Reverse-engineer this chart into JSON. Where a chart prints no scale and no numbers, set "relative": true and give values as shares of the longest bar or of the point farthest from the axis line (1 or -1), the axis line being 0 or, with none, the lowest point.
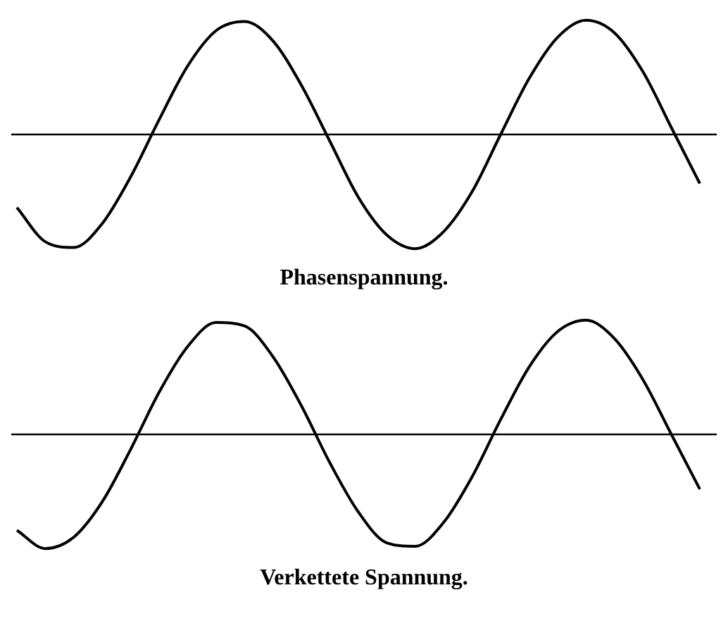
{
  "chart_data": [
    {
      "type": "line",
      "title": "Phasenspannung.",
      "relative": true,
      "categories": [
        null,
        null,
        null,
        null,
        null,
        null,
        null,
        null,
        null,
        null,
        null,
        null,
        null,
        null,
        null,
        null,
        null,
        null,
        null,
        null,
        null,
        null,
        null,
        null,
        null
      ],
      "series": [
        {
          "color": "#000000",
          "values": [
            -0.64,
            -0.94,
            -0.99,
            -0.78,
            -0.37,
            0.13,
            0.6,
            0.91,
            0.99,
            0.82,
            0.43,
            -0.06,
            -0.55,
            -0.88,
            -1,
            -0.85,
            -0.5,
            0,
            0.49,
            0.85,
            1,
            0.89,
            0.55,
            0.06,
            -0.43
          ]
        }
      ]
    },
    {
      "type": "line",
      "title": "Verkettete Spannung.",
      "relative": true,
      "categories": [
        null,
        null,
        null,
        null,
        null,
        null,
        null,
        null,
        null,
        null,
        null,
        null,
        null,
        null,
        null,
        null,
        null,
        null,
        null,
        null,
        null,
        null,
        null,
        null,
        null
      ],
      "series": [
        {
          "color": "#000000",
          "values": [
            -0.84,
            -1,
            -0.9,
            -0.59,
            -0.13,
            0.37,
            0.77,
            0.98,
            0.95,
            0.68,
            0.25,
            -0.25,
            -0.68,
            -0.95,
            -0.98,
            -0.77,
            -0.37,
            0.13,
            0.59,
            0.9,
            1,
            0.84,
            0.48,
            0,
            -0.48
          ]
        }
      ]
    }
  ]
}
